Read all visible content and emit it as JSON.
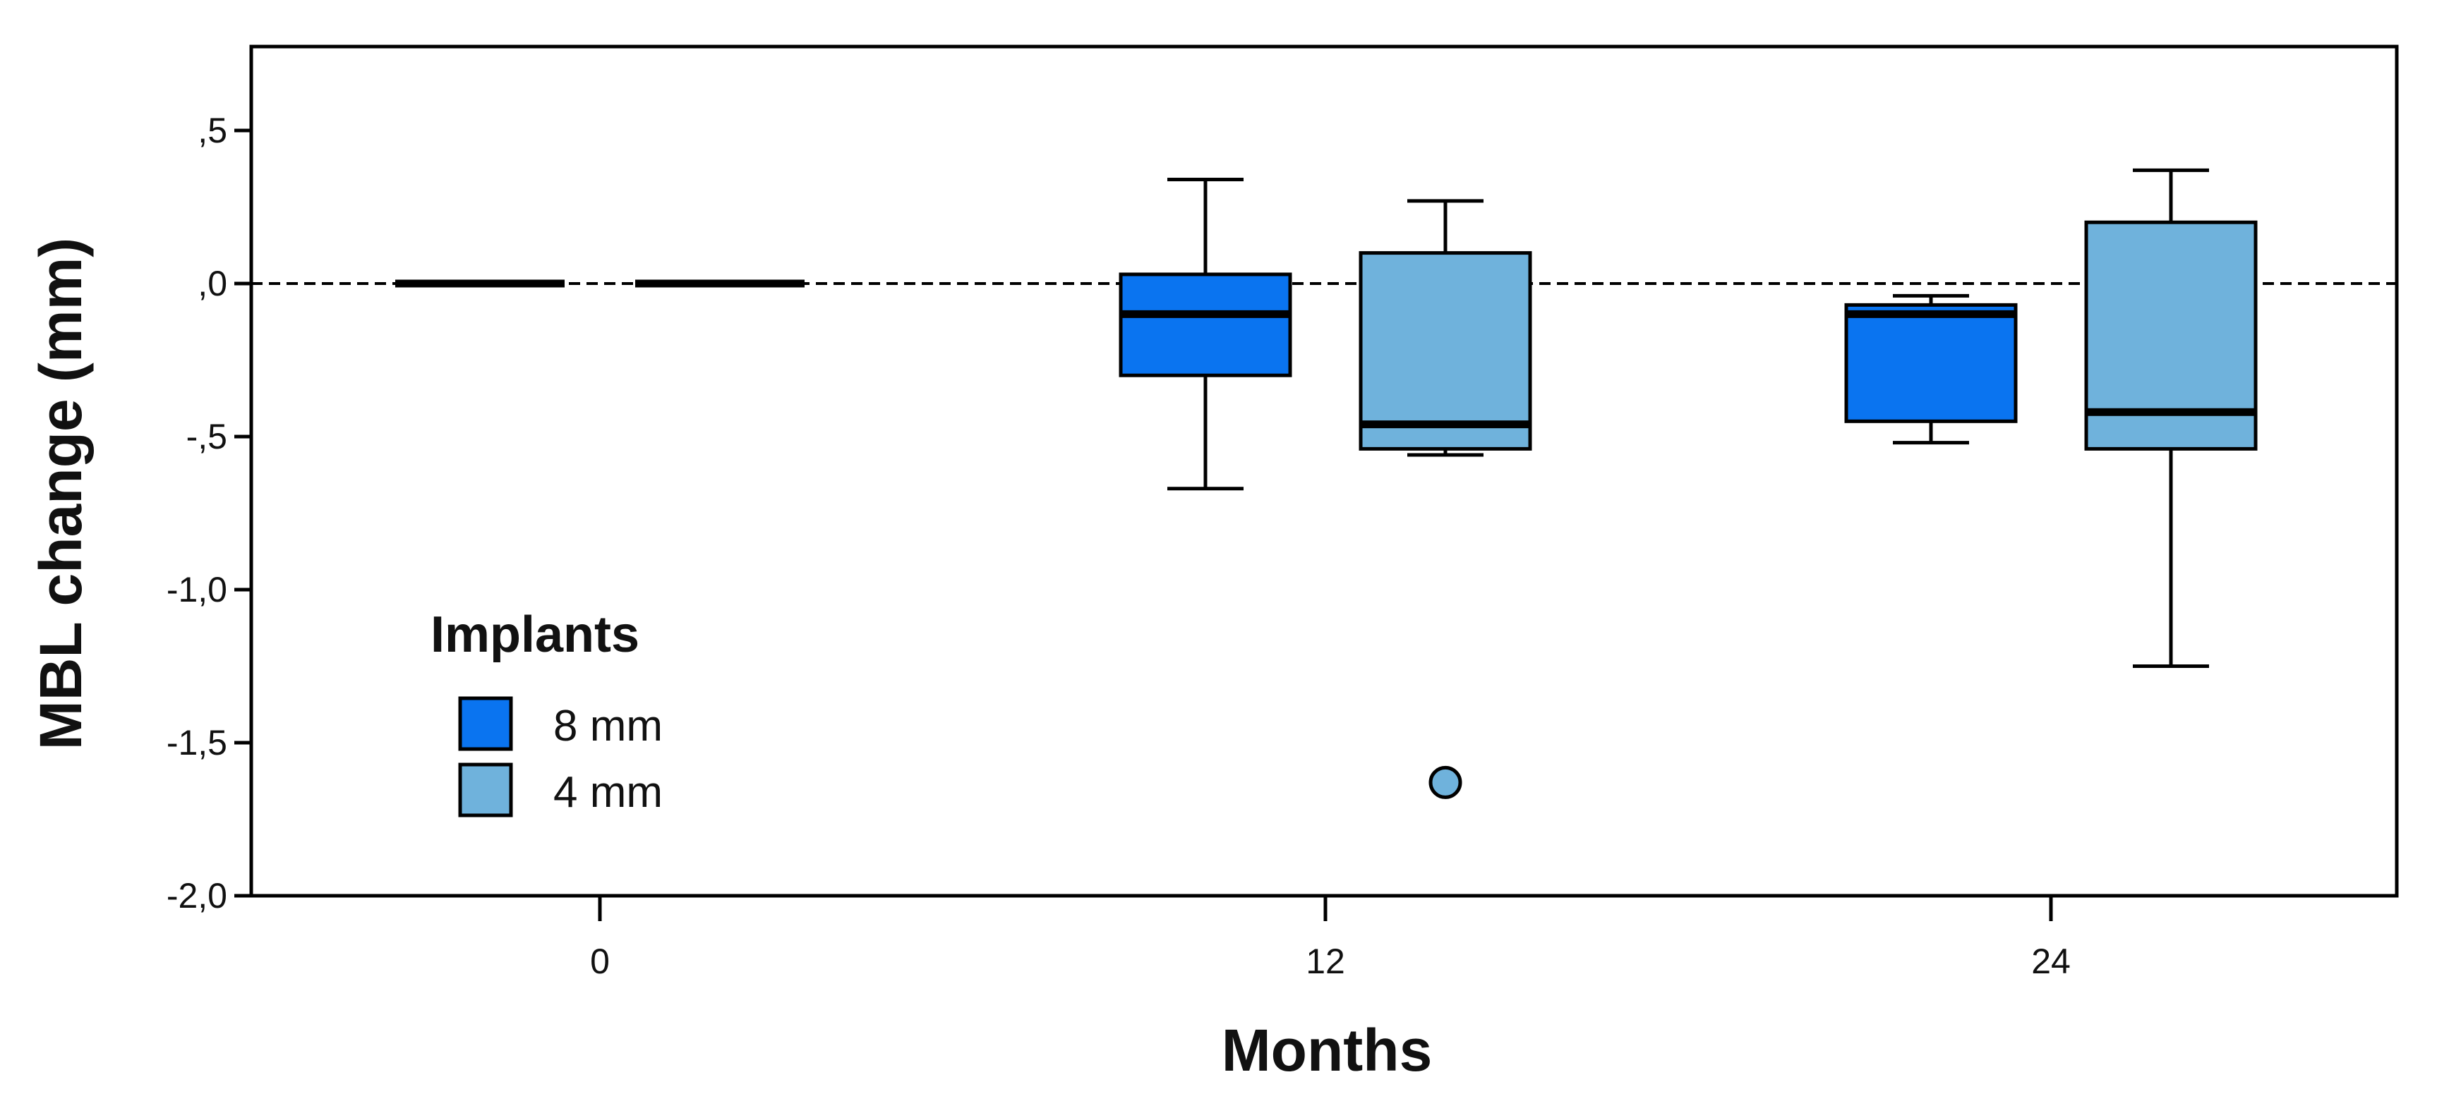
{
  "chart_data": {
    "type": "box",
    "xlabel": "Months",
    "ylabel": "MBL change (mm)",
    "categories": [
      "0",
      "12",
      "24"
    ],
    "ylim": [
      -2.0,
      0.75
    ],
    "yticks": [
      0.5,
      0.0,
      -0.5,
      -1.0,
      -1.5,
      -2.0
    ],
    "ytick_labels": [
      ",5",
      ",0",
      "-,5",
      "-1,0",
      "-1,5",
      "-2,0"
    ],
    "reference_line": 0.0,
    "legend": {
      "title": "Implants",
      "position": "bottom-left"
    },
    "series": [
      {
        "name": "8 mm",
        "color": "#0a74f0",
        "boxes": [
          {
            "category": "0",
            "whisker_low": 0.0,
            "q1": 0.0,
            "median": 0.0,
            "q3": 0.0,
            "whisker_high": 0.0,
            "outliers": []
          },
          {
            "category": "12",
            "whisker_low": -0.67,
            "q1": -0.3,
            "median": -0.1,
            "q3": 0.03,
            "whisker_high": 0.34,
            "outliers": []
          },
          {
            "category": "24",
            "whisker_low": -0.52,
            "q1": -0.45,
            "median": -0.1,
            "q3": -0.07,
            "whisker_high": -0.04,
            "outliers": []
          }
        ]
      },
      {
        "name": "4 mm",
        "color": "#6fb2dc",
        "boxes": [
          {
            "category": "0",
            "whisker_low": 0.0,
            "q1": 0.0,
            "median": 0.0,
            "q3": 0.0,
            "whisker_high": 0.0,
            "outliers": []
          },
          {
            "category": "12",
            "whisker_low": -0.56,
            "q1": -0.54,
            "median": -0.46,
            "q3": 0.1,
            "whisker_high": 0.27,
            "outliers": [
              -1.63
            ]
          },
          {
            "category": "24",
            "whisker_low": -1.25,
            "q1": -0.54,
            "median": -0.42,
            "q3": 0.2,
            "whisker_high": 0.37,
            "outliers": []
          }
        ]
      }
    ]
  }
}
